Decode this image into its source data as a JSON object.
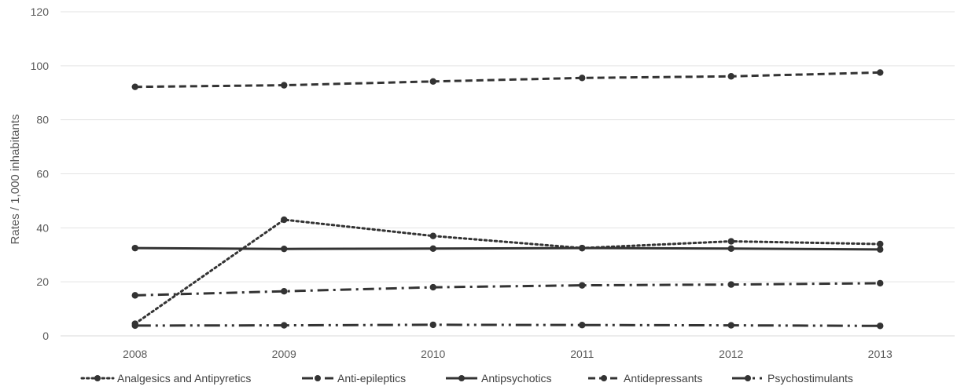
{
  "chart_data": {
    "type": "line",
    "title": "",
    "xlabel": "",
    "ylabel": "Rates / 1,000 inhabitants",
    "categories": [
      "2008",
      "2009",
      "2010",
      "2011",
      "2012",
      "2013"
    ],
    "ylim": [
      0,
      120
    ],
    "yticks": [
      0,
      20,
      40,
      60,
      80,
      100,
      120
    ],
    "grid": "horizontal",
    "legend_position": "bottom",
    "line_color": "#333333",
    "series": [
      {
        "name": "Analgesics and  Antipyretics",
        "style": "dotted",
        "values": [
          4.5,
          43,
          37,
          32.5,
          35,
          34
        ]
      },
      {
        "name": "Anti-epileptics",
        "style": "dash-dot",
        "values": [
          15,
          16.5,
          18,
          18.7,
          19,
          19.5
        ]
      },
      {
        "name": "Antipsychotics",
        "style": "solid",
        "values": [
          32.5,
          32.2,
          32.3,
          32.5,
          32.3,
          32
        ]
      },
      {
        "name": "Antidepressants",
        "style": "dashed",
        "values": [
          92.2,
          92.8,
          94.2,
          95.5,
          96.1,
          97.5
        ]
      },
      {
        "name": "Psychostimulants",
        "style": "long-dash-dot-dot",
        "values": [
          3.8,
          3.9,
          4.1,
          4.0,
          3.9,
          3.7
        ]
      }
    ]
  }
}
